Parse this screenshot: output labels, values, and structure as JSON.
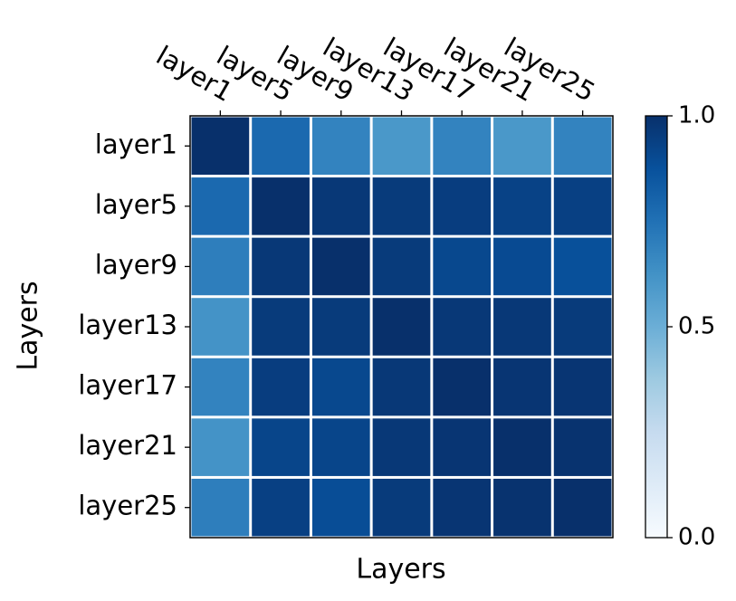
{
  "chart_data": {
    "type": "heatmap",
    "xlabel": "Layers",
    "ylabel": "Layers",
    "xcategories": [
      "layer1",
      "layer5",
      "layer9",
      "layer13",
      "layer17",
      "layer21",
      "layer25"
    ],
    "ycategories": [
      "layer1",
      "layer5",
      "layer9",
      "layer13",
      "layer17",
      "layer21",
      "layer25"
    ],
    "z": [
      [
        1.0,
        0.78,
        0.68,
        0.6,
        0.68,
        0.6,
        0.68
      ],
      [
        0.78,
        1.0,
        0.97,
        0.96,
        0.95,
        0.93,
        0.94
      ],
      [
        0.7,
        0.97,
        1.0,
        0.96,
        0.91,
        0.9,
        0.88
      ],
      [
        0.62,
        0.96,
        0.96,
        1.0,
        0.97,
        0.97,
        0.96
      ],
      [
        0.68,
        0.95,
        0.91,
        0.97,
        1.0,
        0.98,
        0.98
      ],
      [
        0.62,
        0.92,
        0.92,
        0.97,
        0.98,
        1.0,
        0.99
      ],
      [
        0.7,
        0.94,
        0.89,
        0.96,
        0.98,
        0.99,
        1.0
      ]
    ],
    "colormap": "Blues",
    "clim": [
      0,
      1
    ],
    "cticks": [
      {
        "value": 0,
        "label": "0.0"
      },
      0.5,
      {
        "value": 1,
        "label": "1.0"
      }
    ]
  }
}
